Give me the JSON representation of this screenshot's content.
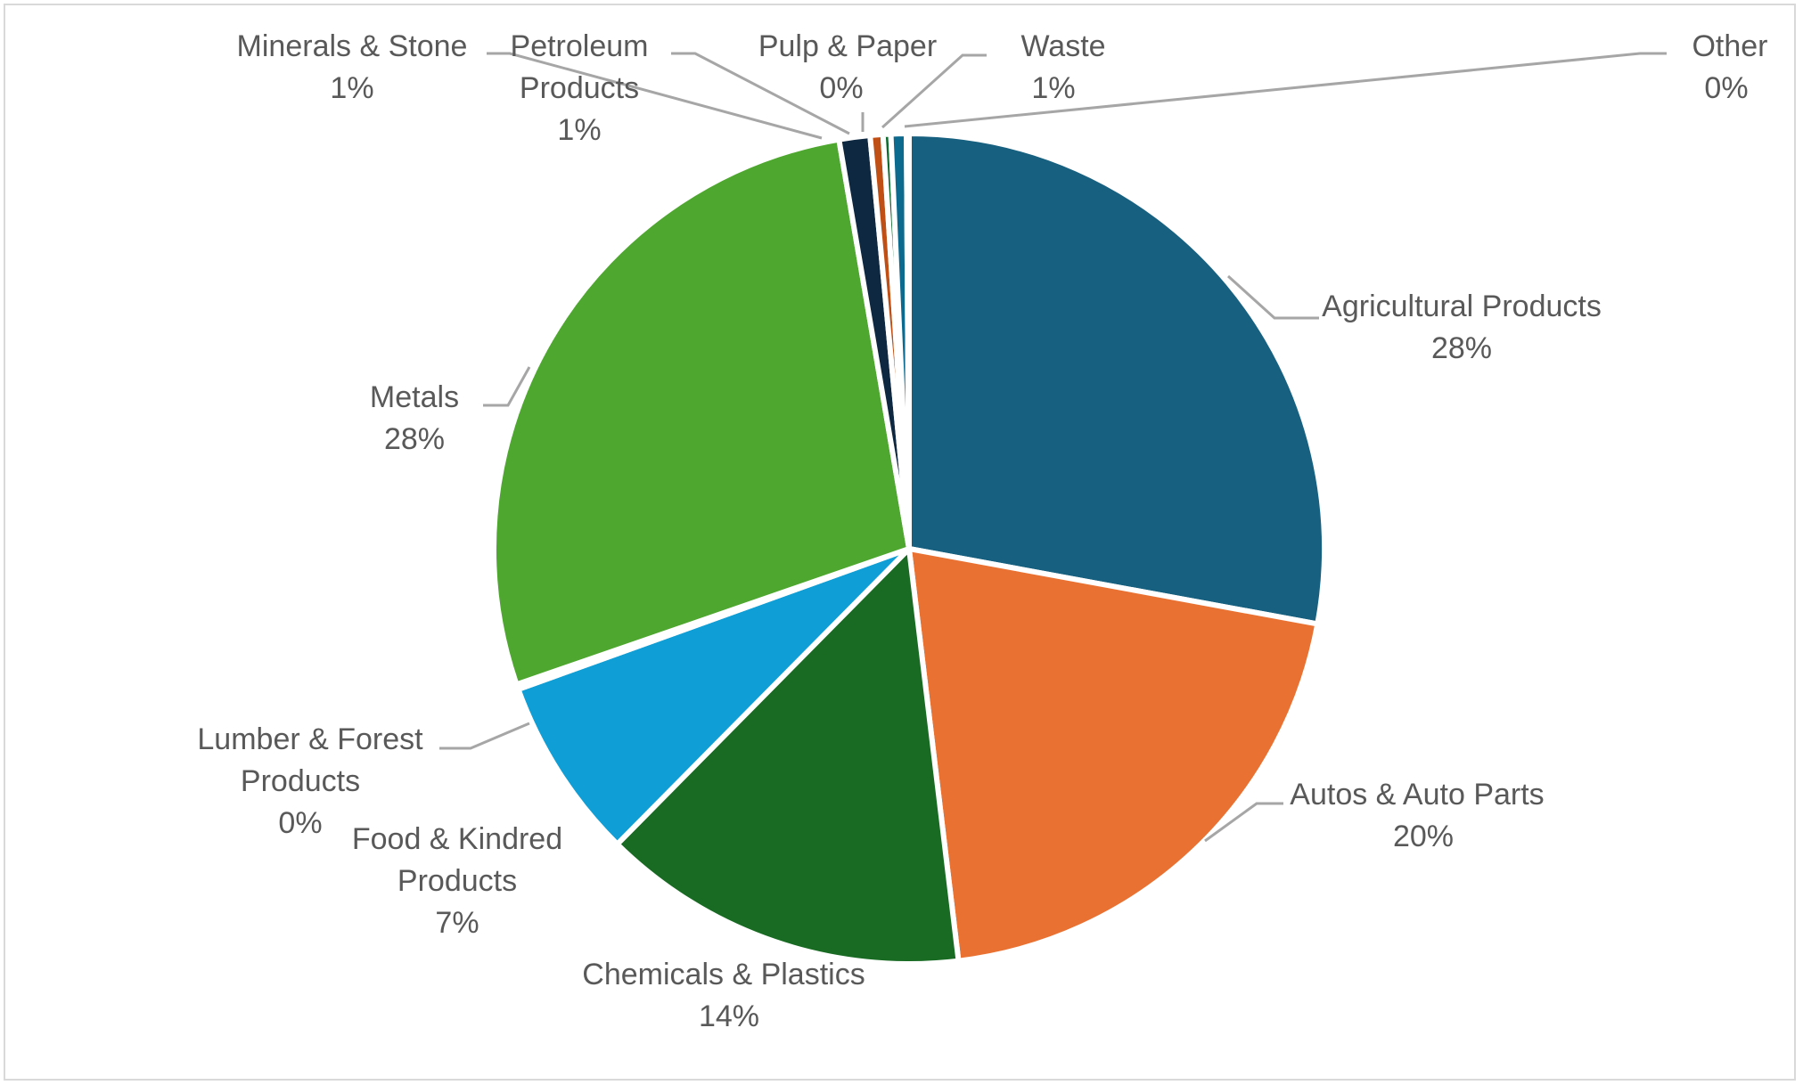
{
  "chart_data": {
    "type": "pie",
    "title": "",
    "legend": "none",
    "start_angle_deg": 0,
    "slices": [
      {
        "label": "Agricultural Products",
        "percent_label": "28%",
        "value": 27.9,
        "color": "#17607f"
      },
      {
        "label": "Autos & Auto Parts",
        "percent_label": "20%",
        "value": 20.2,
        "color": "#e97132"
      },
      {
        "label": "Chemicals & Plastics",
        "percent_label": "14%",
        "value": 14.3,
        "color": "#196b24"
      },
      {
        "label": "Food & Kindred Products",
        "percent_label": "7%",
        "value": 7.1,
        "color": "#0f9ed5"
      },
      {
        "label": "Lumber & Forest Products",
        "percent_label": "0%",
        "value": 0.2,
        "color": "#a02b93"
      },
      {
        "label": "Metals",
        "percent_label": "28%",
        "value": 27.6,
        "color": "#4ea72e"
      },
      {
        "label": "Minerals & Stone",
        "percent_label": "1%",
        "value": 1.2,
        "color": "#0e2841"
      },
      {
        "label": "Petroleum Products",
        "percent_label": "1%",
        "value": 0.5,
        "color": "#c04f15"
      },
      {
        "label": "Pulp & Paper",
        "percent_label": "0%",
        "value": 0.3,
        "color": "#0e6b2e"
      },
      {
        "label": "Waste",
        "percent_label": "1%",
        "value": 0.6,
        "color": "#0d6a8f"
      },
      {
        "label": "Other",
        "percent_label": "0%",
        "value": 0.1,
        "color": "#e9a6c8"
      }
    ]
  }
}
